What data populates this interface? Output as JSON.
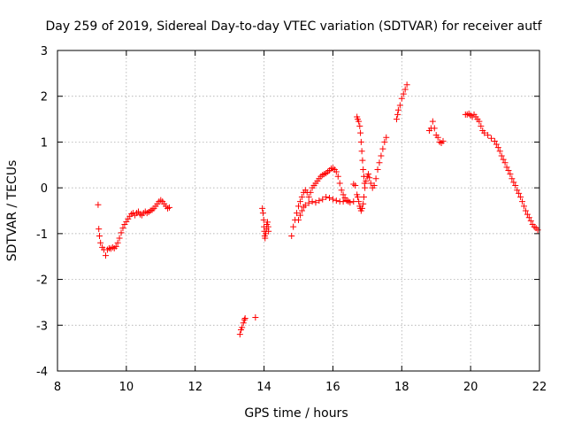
{
  "chart_data": {
    "type": "scatter",
    "title": "Day 259 of 2019, Sidereal Day-to-day VTEC variation (SDTVAR) for receiver autf",
    "xlabel": "GPS time / hours",
    "ylabel": "SDTVAR / TECUs",
    "xlim": [
      8,
      22
    ],
    "ylim": [
      -4,
      3
    ],
    "xticks": [
      8,
      10,
      12,
      14,
      16,
      18,
      20,
      22
    ],
    "yticks": [
      -4,
      -3,
      -2,
      -1,
      0,
      1,
      2,
      3
    ],
    "grid": true,
    "marker": "+",
    "series_color": "#ff0000",
    "segments": [
      {
        "name": "isolated",
        "points": [
          [
            9.18,
            -0.37
          ]
        ]
      },
      {
        "name": "morning",
        "points": [
          [
            9.2,
            -0.9
          ],
          [
            9.22,
            -1.05
          ],
          [
            9.25,
            -1.2
          ],
          [
            9.3,
            -1.3
          ],
          [
            9.35,
            -1.35
          ],
          [
            9.4,
            -1.48
          ],
          [
            9.45,
            -1.35
          ],
          [
            9.5,
            -1.32
          ],
          [
            9.55,
            -1.33
          ],
          [
            9.6,
            -1.3
          ],
          [
            9.65,
            -1.32
          ],
          [
            9.7,
            -1.28
          ],
          [
            9.75,
            -1.2
          ],
          [
            9.8,
            -1.1
          ],
          [
            9.85,
            -0.98
          ],
          [
            9.9,
            -0.88
          ],
          [
            9.95,
            -0.8
          ],
          [
            10.0,
            -0.74
          ],
          [
            10.05,
            -0.68
          ],
          [
            10.1,
            -0.62
          ],
          [
            10.15,
            -0.57
          ],
          [
            10.2,
            -0.55
          ],
          [
            10.25,
            -0.6
          ],
          [
            10.3,
            -0.55
          ],
          [
            10.35,
            -0.52
          ],
          [
            10.4,
            -0.58
          ],
          [
            10.45,
            -0.6
          ],
          [
            10.5,
            -0.55
          ],
          [
            10.55,
            -0.52
          ],
          [
            10.6,
            -0.55
          ],
          [
            10.65,
            -0.53
          ],
          [
            10.7,
            -0.5
          ],
          [
            10.75,
            -0.48
          ],
          [
            10.8,
            -0.45
          ],
          [
            10.85,
            -0.4
          ],
          [
            10.9,
            -0.35
          ],
          [
            10.95,
            -0.3
          ],
          [
            11.0,
            -0.27
          ],
          [
            11.05,
            -0.3
          ],
          [
            11.1,
            -0.35
          ],
          [
            11.15,
            -0.4
          ],
          [
            11.2,
            -0.45
          ],
          [
            11.25,
            -0.43
          ]
        ]
      },
      {
        "name": "low",
        "points": [
          [
            13.3,
            -3.2
          ],
          [
            13.33,
            -3.1
          ],
          [
            13.36,
            -3.05
          ],
          [
            13.4,
            -2.95
          ],
          [
            13.43,
            -2.88
          ],
          [
            13.45,
            -2.85
          ],
          [
            13.75,
            -2.83
          ]
        ]
      },
      {
        "name": "spike14",
        "points": [
          [
            13.95,
            -0.45
          ],
          [
            13.97,
            -0.55
          ],
          [
            13.99,
            -0.7
          ],
          [
            14.0,
            -0.85
          ],
          [
            14.01,
            -0.95
          ],
          [
            14.02,
            -1.05
          ],
          [
            14.03,
            -1.1
          ],
          [
            14.05,
            -1.0
          ],
          [
            14.07,
            -0.9
          ],
          [
            14.08,
            -0.8
          ],
          [
            14.1,
            -0.75
          ],
          [
            14.12,
            -0.85
          ],
          [
            14.13,
            -0.95
          ]
        ]
      },
      {
        "name": "afternoon-upper",
        "points": [
          [
            14.8,
            -1.05
          ],
          [
            14.85,
            -0.85
          ],
          [
            14.9,
            -0.7
          ],
          [
            14.95,
            -0.55
          ],
          [
            15.0,
            -0.4
          ],
          [
            15.05,
            -0.3
          ],
          [
            15.1,
            -0.2
          ],
          [
            15.15,
            -0.1
          ],
          [
            15.2,
            -0.05
          ],
          [
            15.25,
            -0.1
          ],
          [
            15.3,
            -0.2
          ],
          [
            15.35,
            -0.1
          ],
          [
            15.4,
            0.0
          ],
          [
            15.45,
            0.05
          ],
          [
            15.5,
            0.1
          ],
          [
            15.55,
            0.15
          ],
          [
            15.6,
            0.2
          ],
          [
            15.65,
            0.25
          ],
          [
            15.7,
            0.28
          ],
          [
            15.75,
            0.3
          ],
          [
            15.8,
            0.32
          ],
          [
            15.85,
            0.35
          ],
          [
            15.9,
            0.38
          ],
          [
            15.95,
            0.42
          ],
          [
            16.0,
            0.43
          ],
          [
            16.05,
            0.4
          ],
          [
            16.1,
            0.35
          ],
          [
            16.15,
            0.25
          ],
          [
            16.2,
            0.1
          ],
          [
            16.25,
            -0.05
          ],
          [
            16.3,
            -0.15
          ],
          [
            16.35,
            -0.22
          ],
          [
            16.4,
            -0.27
          ],
          [
            16.45,
            -0.3
          ]
        ]
      },
      {
        "name": "afternoon-lower",
        "points": [
          [
            15.0,
            -0.7
          ],
          [
            15.05,
            -0.6
          ],
          [
            15.1,
            -0.5
          ],
          [
            15.15,
            -0.42
          ],
          [
            15.2,
            -0.38
          ],
          [
            15.3,
            -0.33
          ],
          [
            15.4,
            -0.3
          ],
          [
            15.5,
            -0.32
          ],
          [
            15.6,
            -0.28
          ],
          [
            15.7,
            -0.25
          ],
          [
            15.8,
            -0.2
          ],
          [
            15.9,
            -0.22
          ],
          [
            16.0,
            -0.25
          ],
          [
            16.1,
            -0.28
          ],
          [
            16.2,
            -0.3
          ],
          [
            16.3,
            -0.3
          ],
          [
            16.4,
            -0.28
          ],
          [
            16.5,
            -0.32
          ],
          [
            16.6,
            -0.3
          ]
        ]
      },
      {
        "name": "peak167",
        "points": [
          [
            16.7,
            1.55
          ],
          [
            16.72,
            1.5
          ],
          [
            16.75,
            1.45
          ],
          [
            16.78,
            1.35
          ],
          [
            16.8,
            1.2
          ],
          [
            16.82,
            1.0
          ],
          [
            16.84,
            0.8
          ],
          [
            16.86,
            0.6
          ],
          [
            16.88,
            0.4
          ],
          [
            16.9,
            0.25
          ],
          [
            16.92,
            0.1
          ]
        ]
      },
      {
        "name": "dip168",
        "points": [
          [
            16.7,
            -0.15
          ],
          [
            16.72,
            -0.2
          ],
          [
            16.75,
            -0.3
          ],
          [
            16.78,
            -0.4
          ],
          [
            16.8,
            -0.45
          ],
          [
            16.82,
            -0.5
          ],
          [
            16.85,
            -0.45
          ],
          [
            16.88,
            -0.35
          ],
          [
            16.9,
            -0.2
          ],
          [
            16.93,
            0.0
          ],
          [
            16.96,
            0.15
          ],
          [
            17.0,
            0.25
          ],
          [
            17.03,
            0.3
          ],
          [
            17.06,
            0.22
          ],
          [
            17.1,
            0.1
          ],
          [
            17.15,
            0.0
          ],
          [
            17.2,
            0.05
          ],
          [
            17.25,
            0.2
          ],
          [
            17.3,
            0.4
          ],
          [
            17.35,
            0.55
          ],
          [
            17.4,
            0.7
          ],
          [
            17.45,
            0.85
          ],
          [
            17.5,
            1.0
          ],
          [
            17.55,
            1.1
          ]
        ]
      },
      {
        "name": "late-drop",
        "points": [
          [
            16.6,
            0.08
          ],
          [
            16.65,
            0.05
          ]
        ]
      },
      {
        "name": "rise18",
        "points": [
          [
            17.85,
            1.5
          ],
          [
            17.88,
            1.6
          ],
          [
            17.9,
            1.7
          ],
          [
            17.95,
            1.8
          ],
          [
            18.0,
            1.95
          ],
          [
            18.05,
            2.05
          ],
          [
            18.1,
            2.15
          ],
          [
            18.15,
            2.25
          ]
        ]
      },
      {
        "name": "cluster19",
        "points": [
          [
            18.8,
            1.25
          ],
          [
            18.85,
            1.3
          ],
          [
            18.9,
            1.45
          ],
          [
            18.95,
            1.3
          ],
          [
            19.0,
            1.15
          ],
          [
            19.05,
            1.1
          ],
          [
            19.1,
            1.0
          ],
          [
            19.15,
            0.98
          ],
          [
            19.2,
            1.02
          ]
        ]
      },
      {
        "name": "evening",
        "points": [
          [
            19.85,
            1.6
          ],
          [
            19.9,
            1.6
          ],
          [
            19.95,
            1.62
          ],
          [
            20.0,
            1.58
          ],
          [
            20.05,
            1.55
          ],
          [
            20.1,
            1.6
          ],
          [
            20.15,
            1.55
          ],
          [
            20.2,
            1.5
          ],
          [
            20.25,
            1.45
          ],
          [
            20.3,
            1.35
          ],
          [
            20.35,
            1.25
          ],
          [
            20.4,
            1.2
          ],
          [
            20.5,
            1.15
          ],
          [
            20.6,
            1.08
          ],
          [
            20.7,
            1.02
          ],
          [
            20.75,
            0.95
          ],
          [
            20.8,
            0.88
          ],
          [
            20.85,
            0.8
          ],
          [
            20.9,
            0.7
          ],
          [
            20.95,
            0.62
          ],
          [
            21.0,
            0.55
          ],
          [
            21.05,
            0.45
          ],
          [
            21.1,
            0.38
          ],
          [
            21.15,
            0.3
          ],
          [
            21.2,
            0.2
          ],
          [
            21.25,
            0.12
          ],
          [
            21.3,
            0.05
          ],
          [
            21.35,
            -0.05
          ],
          [
            21.4,
            -0.12
          ],
          [
            21.45,
            -0.2
          ],
          [
            21.5,
            -0.3
          ],
          [
            21.55,
            -0.4
          ],
          [
            21.6,
            -0.5
          ],
          [
            21.65,
            -0.58
          ],
          [
            21.7,
            -0.65
          ],
          [
            21.75,
            -0.72
          ],
          [
            21.8,
            -0.8
          ],
          [
            21.85,
            -0.85
          ],
          [
            21.9,
            -0.88
          ],
          [
            21.95,
            -0.92
          ]
        ]
      }
    ]
  }
}
